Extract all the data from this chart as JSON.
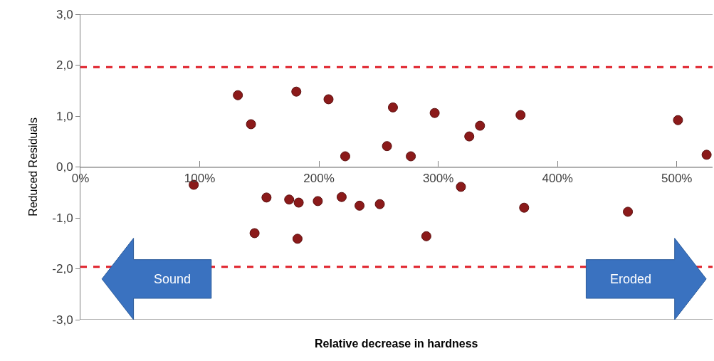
{
  "chart_data": {
    "type": "scatter",
    "xlabel": "Relative decrease in hardness",
    "ylabel": "Reduced Residuals",
    "x": [
      95,
      132,
      143,
      146,
      156,
      175,
      183,
      182,
      181,
      199,
      208,
      219,
      222,
      234,
      251,
      257,
      262,
      277,
      290,
      297,
      319,
      326,
      335,
      369,
      372,
      459,
      501,
      525
    ],
    "series": [
      {
        "color": "#8b1a1a",
        "values": [
          -0.35,
          1.41,
          0.84,
          -1.3,
          -0.6,
          -0.64,
          -0.7,
          -1.41,
          1.48,
          -0.67,
          1.33,
          -0.59,
          0.21,
          -0.76,
          -0.73,
          0.41,
          1.17,
          0.21,
          -1.36,
          1.06,
          -0.39,
          0.6,
          0.81,
          1.02,
          -0.8,
          -0.88,
          0.92,
          0.24
        ]
      }
    ],
    "xlim": [
      0,
      530
    ],
    "xticks": [
      {
        "value": 0,
        "label": "0%"
      },
      {
        "value": 100,
        "label": "100%"
      },
      {
        "value": 200,
        "label": "200%"
      },
      {
        "value": 300,
        "label": "300%"
      },
      {
        "value": 400,
        "label": "400%"
      },
      {
        "value": 500,
        "label": "500%"
      }
    ],
    "ylim": [
      -3,
      3
    ],
    "yticks": [
      {
        "value": -3,
        "label": "-3,0"
      },
      {
        "value": -2,
        "label": "-2,0"
      },
      {
        "value": -1,
        "label": "-1,0"
      },
      {
        "value": 0,
        "label": "0,0"
      },
      {
        "value": 1,
        "label": "1,0"
      },
      {
        "value": 2,
        "label": "2,0"
      },
      {
        "value": 3,
        "label": "3,0"
      }
    ],
    "ref_lines": [
      {
        "axis": "y",
        "value": 1.96,
        "color": "#e0202a",
        "line_style": "dashed"
      },
      {
        "axis": "y",
        "value": -1.96,
        "color": "#e0202a",
        "line_style": "dashed"
      }
    ],
    "annotations": [
      "Sound",
      "Eroded"
    ],
    "marker": "circle"
  }
}
